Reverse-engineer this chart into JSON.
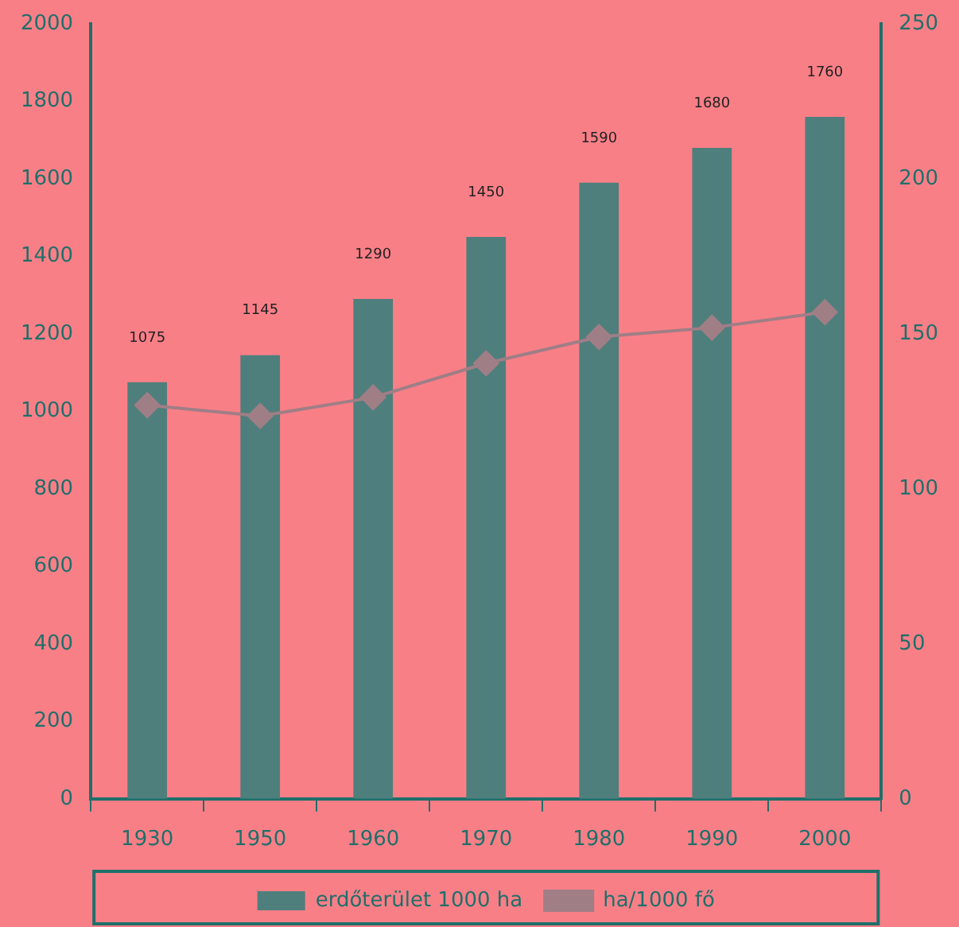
{
  "chart_data": {
    "type": "bar",
    "categories": [
      "1930",
      "1950",
      "1960",
      "1970",
      "1980",
      "1990",
      "2000"
    ],
    "series": [
      {
        "name": "erdőterület 1000 ha",
        "color": "#4e7f7c",
        "values": [
          1075,
          1145,
          1290,
          1450,
          1590,
          1680,
          1760
        ],
        "value_labels": [
          "1075",
          "1145",
          "1290",
          "1450",
          "1590",
          "1680",
          "1760"
        ]
      },
      {
        "name": "ha/1000 fő",
        "type": "line",
        "axis": "y2",
        "color": "#a07e86",
        "marker": "diamond",
        "values": [
          127,
          123.5,
          129.5,
          140.5,
          149,
          152,
          157
        ]
      }
    ],
    "ylim": [
      0,
      2000
    ],
    "yticks": [
      0,
      200,
      400,
      600,
      800,
      1000,
      1200,
      1400,
      1600,
      1800,
      2000
    ],
    "y2lim": [
      0,
      250
    ],
    "y2ticks": [
      0,
      50,
      100,
      150,
      200,
      250
    ],
    "grid": false,
    "legend": "bottom"
  }
}
